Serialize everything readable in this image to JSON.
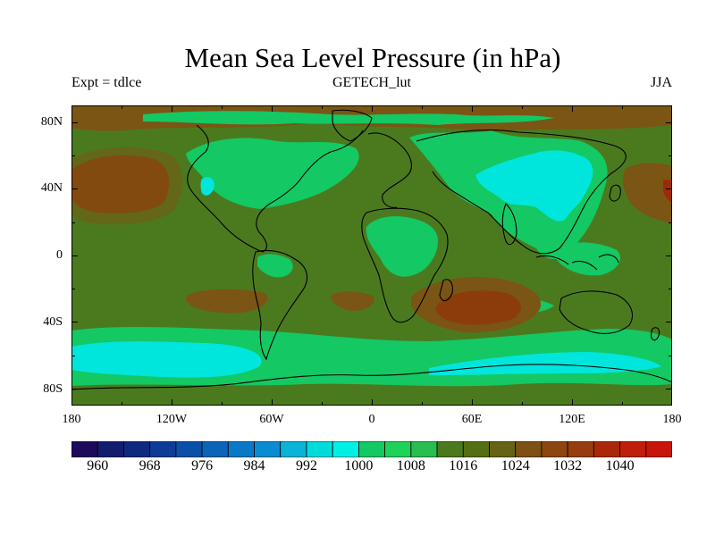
{
  "title": "Mean Sea Level Pressure (in hPa)",
  "experiment": "Expt = tdlce",
  "dataset": "GETECH_lut",
  "season": "JJA",
  "lat_ticks": [
    "80N",
    "40N",
    "0",
    "40S",
    "80S"
  ],
  "lon_ticks": [
    "180",
    "120W",
    "60W",
    "0",
    "60E",
    "120E",
    "180"
  ],
  "colorbar": {
    "labels": [
      "960",
      "968",
      "976",
      "984",
      "992",
      "1000",
      "1008",
      "1016",
      "1024",
      "1032",
      "1040"
    ],
    "colors": [
      "#1e0a5a",
      "#131d6e",
      "#0f2880",
      "#0c3c96",
      "#0a50a8",
      "#0a64b8",
      "#0a78c8",
      "#0a8cd2",
      "#0ab4d8",
      "#00dcdc",
      "#00f0e6",
      "#14c864",
      "#1ed25a",
      "#28be50",
      "#4b7a1e",
      "#556e14",
      "#646414",
      "#7d5014",
      "#8c460f",
      "#963c0f",
      "#aa280a",
      "#be1e0a",
      "#c8140a"
    ]
  },
  "map": {
    "colors": {
      "background": "#4b7a1e",
      "green": "#14c864",
      "cyan": "#00e6dc",
      "brown": "#7a5514",
      "dark_brown": "#8c3c0a",
      "red": "#a0280a",
      "coast": "#000000"
    }
  }
}
